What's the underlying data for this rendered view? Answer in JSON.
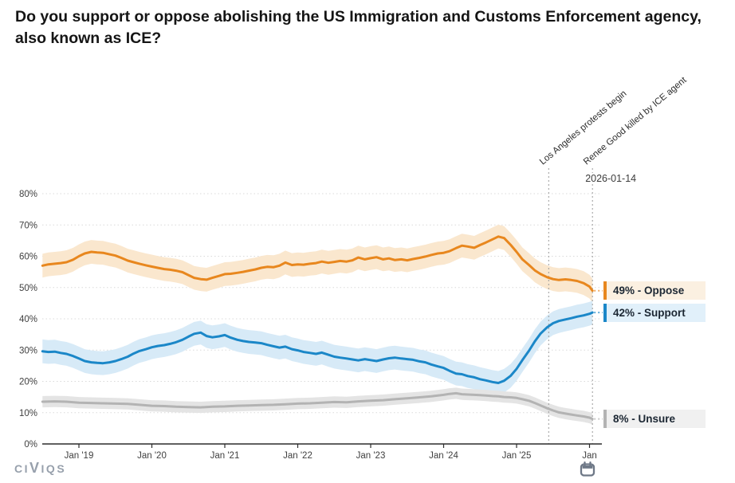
{
  "title": "Do you support or oppose abolishing the US Immigration and Customs Enforcement agency, also known as ICE?",
  "branding": {
    "logo_text": "CIVIQS"
  },
  "chart_data": {
    "type": "line",
    "title": "Do you support or oppose abolishing the US Immigration and Customs Enforcement agency, also known as ICE?",
    "grid": "dotted horizontal at each 10%",
    "legend_position": "right edge value tags",
    "x_unit": "decimal_year",
    "x_axis": {
      "range": [
        2018.5,
        2026.17
      ],
      "tick_years": [
        2019,
        2020,
        2021,
        2022,
        2023,
        2024,
        2025,
        2026
      ],
      "tick_labels": [
        "Jan '19",
        "Jan '20",
        "Jan '21",
        "Jan '22",
        "Jan '23",
        "Jan '24",
        "Jan '25",
        "Jan"
      ]
    },
    "y_axis": {
      "range": [
        0,
        85
      ],
      "tick_values": [
        0,
        10,
        20,
        30,
        40,
        50,
        60,
        70,
        80
      ],
      "tick_labels": [
        "0%",
        "10%",
        "20%",
        "30%",
        "40%",
        "50%",
        "60%",
        "70%",
        "80%"
      ]
    },
    "series": [
      {
        "name": "Oppose",
        "color": "#e8871e",
        "band_color": "#fae7ce",
        "label_bg": "#fbf0e1",
        "label": "49% - Oppose",
        "end_value": 49,
        "band_halfwidth": 3.8,
        "x": [
          2018.5,
          2018.58,
          2018.67,
          2018.75,
          2018.83,
          2018.92,
          2019.0,
          2019.08,
          2019.17,
          2019.25,
          2019.33,
          2019.42,
          2019.5,
          2019.58,
          2019.67,
          2019.75,
          2019.83,
          2019.92,
          2020.0,
          2020.08,
          2020.17,
          2020.25,
          2020.33,
          2020.42,
          2020.5,
          2020.58,
          2020.67,
          2020.75,
          2020.83,
          2020.92,
          2021.0,
          2021.08,
          2021.17,
          2021.25,
          2021.33,
          2021.42,
          2021.5,
          2021.58,
          2021.67,
          2021.75,
          2021.83,
          2021.92,
          2022.0,
          2022.08,
          2022.17,
          2022.25,
          2022.33,
          2022.42,
          2022.5,
          2022.58,
          2022.67,
          2022.75,
          2022.83,
          2022.92,
          2023.0,
          2023.08,
          2023.17,
          2023.25,
          2023.33,
          2023.42,
          2023.5,
          2023.58,
          2023.67,
          2023.75,
          2023.83,
          2023.92,
          2024.0,
          2024.08,
          2024.17,
          2024.25,
          2024.33,
          2024.42,
          2024.5,
          2024.58,
          2024.67,
          2024.75,
          2024.83,
          2024.92,
          2025.0,
          2025.08,
          2025.17,
          2025.25,
          2025.33,
          2025.42,
          2025.5,
          2025.58,
          2025.67,
          2025.75,
          2025.83,
          2025.92,
          2026.0,
          2026.04
        ],
        "values": [
          57.0,
          57.4,
          57.6,
          57.8,
          58.1,
          58.9,
          60.0,
          60.9,
          61.4,
          61.2,
          61.1,
          60.6,
          60.2,
          59.5,
          58.6,
          58.1,
          57.6,
          57.1,
          56.7,
          56.3,
          55.9,
          55.7,
          55.4,
          54.9,
          54.0,
          53.1,
          52.7,
          52.5,
          53.1,
          53.7,
          54.3,
          54.4,
          54.7,
          55.0,
          55.4,
          55.8,
          56.3,
          56.6,
          56.5,
          57.0,
          58.0,
          57.2,
          57.4,
          57.3,
          57.6,
          57.8,
          58.3,
          57.9,
          58.2,
          58.5,
          58.3,
          58.7,
          59.6,
          59.0,
          59.4,
          59.7,
          59.0,
          59.3,
          58.8,
          59.0,
          58.7,
          59.1,
          59.5,
          59.9,
          60.4,
          60.9,
          61.1,
          61.6,
          62.6,
          63.4,
          63.1,
          62.7,
          63.6,
          64.4,
          65.4,
          66.3,
          65.8,
          63.6,
          61.4,
          59.0,
          57.2,
          55.5,
          54.3,
          53.3,
          52.7,
          52.4,
          52.6,
          52.4,
          52.1,
          51.4,
          50.3,
          49.0
        ]
      },
      {
        "name": "Support",
        "color": "#1b87c8",
        "band_color": "#d7eaf7",
        "label_bg": "#e1f0fa",
        "label": "42% - Support",
        "end_value": 42,
        "band_halfwidth": 3.8,
        "x": [
          2018.5,
          2018.58,
          2018.67,
          2018.75,
          2018.83,
          2018.92,
          2019.0,
          2019.08,
          2019.17,
          2019.25,
          2019.33,
          2019.42,
          2019.5,
          2019.58,
          2019.67,
          2019.75,
          2019.83,
          2019.92,
          2020.0,
          2020.08,
          2020.17,
          2020.25,
          2020.33,
          2020.42,
          2020.5,
          2020.58,
          2020.67,
          2020.75,
          2020.83,
          2020.92,
          2021.0,
          2021.08,
          2021.17,
          2021.25,
          2021.33,
          2021.42,
          2021.5,
          2021.58,
          2021.67,
          2021.75,
          2021.83,
          2021.92,
          2022.0,
          2022.08,
          2022.17,
          2022.25,
          2022.33,
          2022.42,
          2022.5,
          2022.58,
          2022.67,
          2022.75,
          2022.83,
          2022.92,
          2023.0,
          2023.08,
          2023.17,
          2023.25,
          2023.33,
          2023.42,
          2023.5,
          2023.58,
          2023.67,
          2023.75,
          2023.83,
          2023.92,
          2024.0,
          2024.08,
          2024.17,
          2024.25,
          2024.33,
          2024.42,
          2024.5,
          2024.58,
          2024.67,
          2024.75,
          2024.83,
          2024.92,
          2025.0,
          2025.08,
          2025.17,
          2025.25,
          2025.33,
          2025.42,
          2025.5,
          2025.58,
          2025.67,
          2025.75,
          2025.83,
          2025.92,
          2026.0,
          2026.04
        ],
        "values": [
          29.6,
          29.4,
          29.5,
          29.1,
          28.8,
          28.1,
          27.3,
          26.5,
          26.1,
          25.9,
          25.8,
          26.1,
          26.5,
          27.1,
          27.9,
          28.9,
          29.7,
          30.3,
          30.9,
          31.3,
          31.6,
          32.0,
          32.5,
          33.3,
          34.3,
          35.2,
          35.6,
          34.5,
          34.1,
          34.4,
          34.8,
          34.0,
          33.3,
          32.9,
          32.6,
          32.4,
          32.2,
          31.7,
          31.2,
          30.8,
          31.1,
          30.3,
          29.9,
          29.4,
          29.1,
          28.8,
          29.2,
          28.5,
          27.9,
          27.6,
          27.3,
          27.0,
          26.7,
          27.1,
          26.8,
          26.5,
          27.0,
          27.4,
          27.6,
          27.3,
          27.1,
          26.9,
          26.4,
          26.1,
          25.4,
          24.8,
          24.3,
          23.4,
          22.5,
          22.3,
          21.7,
          21.3,
          20.7,
          20.3,
          19.8,
          19.5,
          20.2,
          21.8,
          24.0,
          26.8,
          29.8,
          32.8,
          35.3,
          37.3,
          38.6,
          39.3,
          39.8,
          40.2,
          40.7,
          41.1,
          41.6,
          42.0
        ]
      },
      {
        "name": "Unsure",
        "color": "#b3b3b3",
        "band_color": "#e4e4e4",
        "label_bg": "#f0f0f0",
        "label": "8% - Unsure",
        "end_value": 8,
        "band_halfwidth": 1.8,
        "x": [
          2018.5,
          2018.67,
          2018.83,
          2019.0,
          2019.17,
          2019.33,
          2019.5,
          2019.67,
          2019.83,
          2020.0,
          2020.17,
          2020.33,
          2020.5,
          2020.67,
          2020.83,
          2021.0,
          2021.17,
          2021.33,
          2021.5,
          2021.67,
          2021.83,
          2022.0,
          2022.17,
          2022.33,
          2022.5,
          2022.67,
          2022.83,
          2023.0,
          2023.17,
          2023.33,
          2023.5,
          2023.67,
          2023.83,
          2024.0,
          2024.08,
          2024.17,
          2024.25,
          2024.33,
          2024.42,
          2024.5,
          2024.58,
          2024.67,
          2024.75,
          2024.83,
          2024.92,
          2025.0,
          2025.08,
          2025.17,
          2025.25,
          2025.33,
          2025.42,
          2025.5,
          2025.58,
          2025.67,
          2025.75,
          2025.83,
          2025.92,
          2026.0,
          2026.04
        ],
        "values": [
          13.5,
          13.6,
          13.5,
          13.2,
          13.1,
          13.0,
          12.9,
          12.8,
          12.5,
          12.2,
          12.1,
          11.9,
          11.8,
          11.7,
          11.9,
          12.0,
          12.2,
          12.3,
          12.4,
          12.5,
          12.7,
          12.9,
          13.0,
          13.2,
          13.4,
          13.3,
          13.6,
          13.8,
          14.0,
          14.3,
          14.6,
          14.9,
          15.2,
          15.7,
          16.0,
          16.2,
          15.9,
          15.8,
          15.7,
          15.6,
          15.5,
          15.3,
          15.2,
          15.0,
          14.9,
          14.7,
          14.3,
          13.8,
          13.1,
          12.3,
          11.4,
          10.7,
          10.1,
          9.7,
          9.4,
          9.1,
          8.8,
          8.4,
          8.0
        ]
      }
    ],
    "annotations": {
      "events": [
        {
          "label": "Los Angeles protests begin",
          "x": 2025.44
        },
        {
          "label": "Renee Good killed by ICE agent",
          "x": 2026.04
        }
      ],
      "date_label": "2026-01-14"
    }
  }
}
